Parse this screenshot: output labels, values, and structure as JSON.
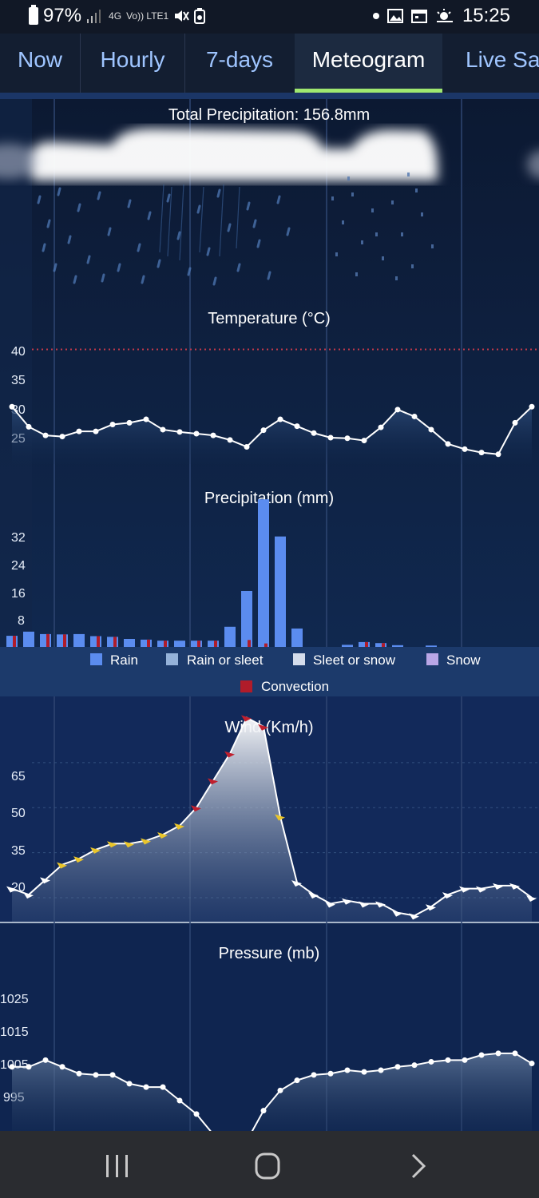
{
  "status_bar": {
    "battery": "97%",
    "network_labels": [
      "4G",
      "Vo)) LTE1"
    ],
    "time": "15:25",
    "icons": [
      "battery-icon",
      "signal-icon",
      "mute-icon",
      "battery-saver-icon",
      "notification-dot-icon",
      "gallery-icon",
      "calendar-icon",
      "weather-icon"
    ]
  },
  "tabs": [
    {
      "label": "Now",
      "active": false
    },
    {
      "label": "Hourly",
      "active": false
    },
    {
      "label": "7-days",
      "active": false
    },
    {
      "label": "Meteogram",
      "active": true
    },
    {
      "label": "Live Sat",
      "active": false
    }
  ],
  "meteogram": {
    "total_precipitation": "Total Precipitation: 156.8mm",
    "temperature": {
      "title": "Temperature (°C)",
      "ticks": [
        40,
        35,
        30,
        25
      ],
      "range": [
        20,
        43
      ],
      "threshold": 40,
      "values": [
        30,
        26.5,
        25,
        24.8,
        25.7,
        25.7,
        26.9,
        27.2,
        27.8,
        26,
        25.6,
        25.3,
        25,
        24.2,
        23,
        25.9,
        27.8,
        26.6,
        25.4,
        24.6,
        24.5,
        24.1,
        26.4,
        29.5,
        28.3,
        26,
        23.5,
        22.6,
        22,
        21.7,
        27.2,
        30
      ]
    },
    "precipitation": {
      "title": "Precipitation (mm)",
      "ticks": [
        32,
        24,
        16,
        8
      ],
      "range": [
        0,
        43
      ],
      "rain": [
        3.2,
        4.4,
        3.7,
        3.6,
        3.7,
        3.1,
        2.9,
        2.3,
        2.1,
        1.8,
        1.8,
        1.8,
        1.8,
        5.8,
        16.1,
        42.5,
        31.8,
        5.3,
        0,
        0,
        0.6,
        1.4,
        1.1,
        0.5,
        0,
        0.4,
        0,
        0,
        0,
        0,
        0,
        0
      ],
      "convection": [
        3.2,
        0,
        3.7,
        3.6,
        0,
        3.1,
        2.9,
        0,
        2.1,
        1.8,
        0,
        1.8,
        1.8,
        0,
        2,
        1,
        0,
        0,
        0,
        0,
        0,
        1.4,
        1.1,
        0,
        0,
        0,
        0,
        0,
        0,
        0,
        0,
        0
      ]
    },
    "legend": [
      {
        "label": "Rain",
        "color": "#5b8cef"
      },
      {
        "label": "Rain or sleet",
        "color": "#95b2d9"
      },
      {
        "label": "Sleet or snow",
        "color": "#d4dceb"
      },
      {
        "label": "Snow",
        "color": "#b9a6e6"
      },
      {
        "label": "Convection",
        "color": "#b01c2a"
      }
    ],
    "wind": {
      "title": "Wind (Km/h)",
      "ticks": [
        65,
        50,
        35,
        20
      ],
      "range": [
        12,
        78
      ],
      "values": [
        23,
        21,
        26,
        31,
        33,
        36,
        38,
        38,
        39,
        41,
        44,
        50,
        59,
        68,
        80,
        77,
        47,
        25,
        21,
        18,
        19,
        18,
        18,
        15,
        14,
        17,
        21,
        23,
        23,
        24,
        24,
        20
      ],
      "colors": [
        "white",
        "white",
        "white",
        "yellow",
        "yellow",
        "yellow",
        "yellow",
        "yellow",
        "yellow",
        "yellow",
        "yellow",
        "red",
        "red",
        "red",
        "red",
        "red",
        "yellow",
        "white",
        "white",
        "white",
        "white",
        "white",
        "white",
        "white",
        "white",
        "white",
        "white",
        "white",
        "white",
        "white",
        "white",
        "white"
      ]
    },
    "pressure": {
      "title": "Pressure (mb)",
      "ticks": [
        1025,
        1015,
        1005,
        995
      ],
      "range": [
        986,
        1031
      ],
      "values": [
        1005,
        1005,
        1007,
        1005,
        1003,
        1002.6,
        1002.6,
        1000,
        999,
        999,
        995,
        991,
        985,
        983,
        983,
        992,
        998,
        1001,
        1002.6,
        1003,
        1004,
        1003.5,
        1004,
        1005,
        1005.5,
        1006.5,
        1007,
        1007,
        1008.5,
        1009,
        1009,
        1006
      ]
    }
  },
  "nav_bar": {
    "icons": [
      "recent-apps-icon",
      "home-icon",
      "back-icon"
    ]
  }
}
